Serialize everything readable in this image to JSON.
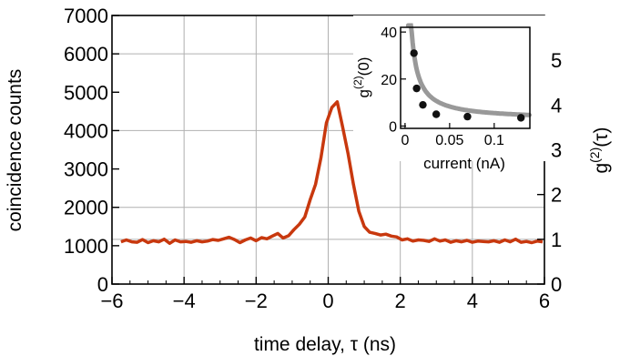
{
  "chart_data": [
    {
      "type": "line",
      "title": "",
      "xlabel": "time delay, τ (ns)",
      "ylabel": "coincidence counts",
      "y2label_main": "g",
      "y2label_sup": "(2)",
      "y2label_tail": "(τ)",
      "xlim": [
        -6,
        6
      ],
      "ylim": [
        0,
        7000
      ],
      "y2lim": [
        0,
        6.0
      ],
      "grid": true,
      "xticks": [
        -6,
        -4,
        -2,
        0,
        2,
        4,
        6
      ],
      "xtick_labels": [
        "−6",
        "−4",
        "−2",
        "0",
        "2",
        "4",
        "6"
      ],
      "yticks": [
        0,
        1000,
        2000,
        3000,
        4000,
        5000,
        6000,
        7000
      ],
      "ytick_labels": [
        "0",
        "1000",
        "2000",
        "3000",
        "4000",
        "5000",
        "6000",
        "7000"
      ],
      "y2ticks": [
        0,
        1,
        2,
        3,
        4,
        5
      ],
      "y2tick_labels": [
        "0",
        "1",
        "2",
        "3",
        "4",
        "5"
      ],
      "line_color": "#c8380e",
      "series": [
        {
          "x": [
            -5.75,
            -5.6,
            -5.45,
            -5.3,
            -5.15,
            -5.0,
            -4.85,
            -4.7,
            -4.55,
            -4.4,
            -4.25,
            -4.1,
            -3.95,
            -3.8,
            -3.65,
            -3.5,
            -3.35,
            -3.2,
            -3.05,
            -2.9,
            -2.75,
            -2.6,
            -2.45,
            -2.3,
            -2.15,
            -2.0,
            -1.85,
            -1.7,
            -1.55,
            -1.4,
            -1.25,
            -1.1,
            -0.95,
            -0.8,
            -0.65,
            -0.5,
            -0.35,
            -0.2,
            -0.05,
            0.1,
            0.25,
            0.4,
            0.55,
            0.7,
            0.85,
            1.0,
            1.15,
            1.3,
            1.45,
            1.6,
            1.75,
            1.9,
            2.05,
            2.2,
            2.35,
            2.5,
            2.65,
            2.8,
            2.95,
            3.1,
            3.25,
            3.4,
            3.55,
            3.7,
            3.85,
            4.0,
            4.15,
            4.3,
            4.45,
            4.6,
            4.75,
            4.9,
            5.05,
            5.2,
            5.35,
            5.5,
            5.65,
            5.8,
            5.95
          ],
          "y": [
            1100,
            1150,
            1100,
            1090,
            1160,
            1080,
            1130,
            1100,
            1170,
            1060,
            1150,
            1100,
            1110,
            1090,
            1130,
            1100,
            1120,
            1160,
            1140,
            1180,
            1220,
            1160,
            1080,
            1150,
            1200,
            1130,
            1210,
            1180,
            1250,
            1320,
            1200,
            1260,
            1420,
            1560,
            1750,
            2200,
            2600,
            3300,
            4200,
            4600,
            4750,
            4100,
            3400,
            2600,
            1900,
            1500,
            1350,
            1320,
            1280,
            1300,
            1250,
            1230,
            1150,
            1180,
            1120,
            1150,
            1140,
            1110,
            1180,
            1120,
            1150,
            1090,
            1130,
            1100,
            1140,
            1090,
            1120,
            1110,
            1100,
            1130,
            1090,
            1150,
            1100,
            1170,
            1090,
            1110,
            1080,
            1120,
            1100
          ]
        }
      ]
    },
    {
      "type": "scatter",
      "title": "",
      "xlabel": "current (nA)",
      "ylabel_main": "g",
      "ylabel_sup": "(2)",
      "ylabel_tail": "(0)",
      "xlim": [
        -0.005,
        0.14
      ],
      "ylim": [
        -1,
        42
      ],
      "xticks": [
        0,
        0.05,
        0.1
      ],
      "xtick_labels": [
        "0",
        "0.05",
        "0.1"
      ],
      "yticks": [
        0,
        20,
        40
      ],
      "ytick_labels": [
        "0",
        "20",
        "40"
      ],
      "points": {
        "x": [
          0.01,
          0.013,
          0.02,
          0.035,
          0.07,
          0.13
        ],
        "y": [
          31,
          16,
          9,
          5,
          4,
          3.5
        ]
      },
      "fit_color": "#999999",
      "point_color": "#111111"
    }
  ]
}
